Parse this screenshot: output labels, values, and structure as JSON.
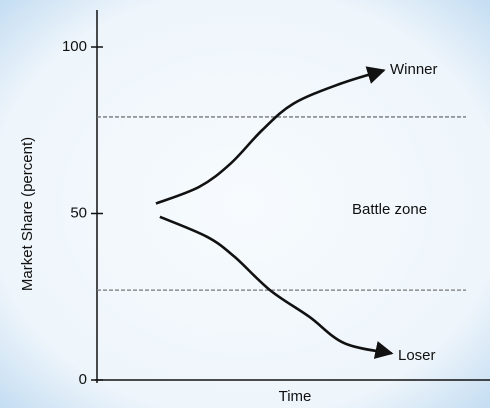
{
  "chart_data": {
    "type": "line",
    "ylabel": "Market Share (percent)",
    "xlabel": "Time",
    "xlim": [
      0,
      100
    ],
    "ylim": [
      0,
      100
    ],
    "yticks": [
      0,
      50,
      100
    ],
    "reference_lines": [
      79,
      27
    ],
    "annotations": [
      "Winner",
      "Battle zone",
      "Loser"
    ],
    "series": [
      {
        "color": "#111111",
        "x": [
          15,
          26,
          34,
          42,
          50,
          62,
          73
        ],
        "values": [
          53,
          58,
          65,
          75,
          83,
          89,
          93
        ]
      },
      {
        "color": "#111111",
        "x": [
          16,
          28,
          35,
          44,
          54,
          63,
          75
        ],
        "values": [
          49,
          43,
          37,
          27,
          19,
          11,
          8
        ]
      }
    ]
  }
}
